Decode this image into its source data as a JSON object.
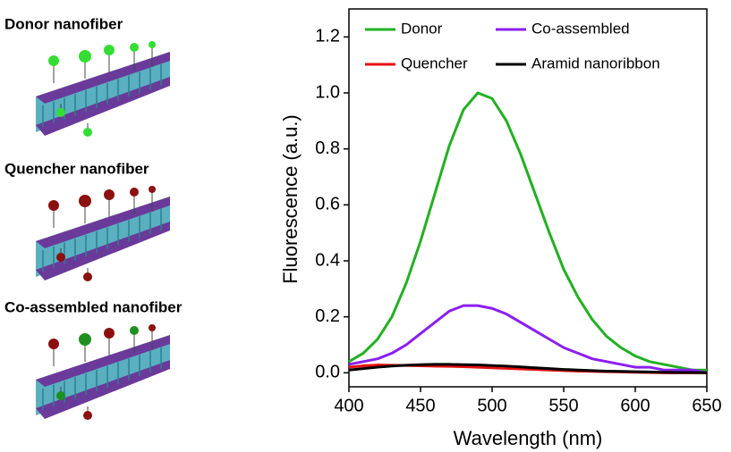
{
  "illustrations": [
    {
      "label": "Donor nanofiber",
      "color": "#22cc22"
    },
    {
      "label": "Quencher nanofiber",
      "color": "#dd1111"
    },
    {
      "label": "Co-assembled nanofiber",
      "color": "#8822dd"
    }
  ],
  "chart_data": {
    "type": "line",
    "x_label": "Wavelength (nm)",
    "y_label": "Fluorescence (a.u.)",
    "x": [
      400,
      410,
      420,
      430,
      440,
      450,
      460,
      470,
      480,
      490,
      500,
      510,
      520,
      530,
      540,
      550,
      560,
      570,
      580,
      590,
      600,
      610,
      620,
      630,
      640,
      650
    ],
    "series": [
      {
        "name": "Donor",
        "color": "#22b022",
        "values": [
          0.04,
          0.07,
          0.12,
          0.2,
          0.32,
          0.47,
          0.64,
          0.81,
          0.94,
          1.0,
          0.98,
          0.9,
          0.78,
          0.64,
          0.5,
          0.37,
          0.27,
          0.19,
          0.13,
          0.09,
          0.06,
          0.04,
          0.03,
          0.02,
          0.01,
          0.01
        ]
      },
      {
        "name": "Co-assembled",
        "color": "#8b1ef0",
        "values": [
          0.03,
          0.04,
          0.05,
          0.07,
          0.1,
          0.14,
          0.18,
          0.22,
          0.24,
          0.24,
          0.23,
          0.21,
          0.18,
          0.15,
          0.12,
          0.09,
          0.07,
          0.05,
          0.04,
          0.03,
          0.02,
          0.02,
          0.01,
          0.01,
          0.01,
          0.0
        ]
      },
      {
        "name": "Quencher",
        "color": "#e81010",
        "values": [
          0.02,
          0.025,
          0.028,
          0.027,
          0.026,
          0.025,
          0.024,
          0.023,
          0.022,
          0.02,
          0.018,
          0.016,
          0.014,
          0.012,
          0.01,
          0.008,
          0.006,
          0.005,
          0.004,
          0.003,
          0.002,
          0.001,
          0,
          0,
          0,
          0
        ]
      },
      {
        "name": "Aramid nanoribbon",
        "color": "#000000",
        "values": [
          0.01,
          0.015,
          0.02,
          0.024,
          0.027,
          0.029,
          0.03,
          0.03,
          0.029,
          0.028,
          0.026,
          0.024,
          0.021,
          0.018,
          0.015,
          0.012,
          0.01,
          0.008,
          0.006,
          0.005,
          0.004,
          0.003,
          0.002,
          0.001,
          0.001,
          0
        ]
      }
    ],
    "xlim": [
      400,
      650
    ],
    "ylim": [
      -0.05,
      1.3
    ],
    "xticks": [
      400,
      450,
      500,
      550,
      600,
      650
    ],
    "yticks": [
      {
        "value": 0,
        "label": "0.0"
      },
      0.2,
      0.4,
      0.6,
      0.8,
      {
        "value": 1,
        "label": "1.0"
      },
      1.2
    ]
  }
}
